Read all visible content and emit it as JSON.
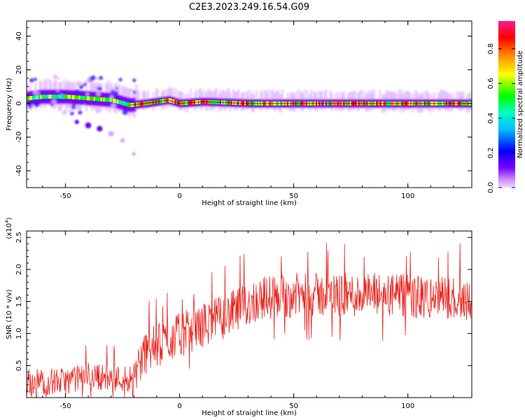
{
  "title": "C2E3.2023.249.16.54.G09",
  "colors": {
    "snr_line": "#e8221c",
    "axis": "#000000"
  },
  "chart_data": [
    {
      "type": "heatmap",
      "xlabel": "Height of straight line (km)",
      "ylabel": "Frequency (Hz)",
      "xlim": [
        -67,
        128
      ],
      "ylim": [
        -50,
        49
      ],
      "x_ticks": [
        -50,
        0,
        50,
        100
      ],
      "y_ticks": [
        -40,
        -20,
        0,
        20,
        40
      ],
      "x_tick_labels": [
        "-50",
        "0",
        "50",
        "100"
      ],
      "y_tick_labels": [
        "-40",
        "-20",
        "0",
        "20",
        "40"
      ],
      "colorbar": {
        "label": "Normalized spectral amplitude",
        "range": [
          0.0,
          0.96
        ],
        "ticks": [
          0.0,
          0.2,
          0.4,
          0.6,
          0.8
        ],
        "tick_labels": [
          "0.0",
          "0.2",
          "0.4",
          "0.6",
          "0.8"
        ],
        "colormap": [
          "#f5d6ff",
          "#7b00ff",
          "#0000ff",
          "#00e5ff",
          "#00ff00",
          "#ffff00",
          "#ff8000",
          "#ff0000",
          "#ff1a8c"
        ]
      },
      "description_series": [
        {
          "name": "main_trace",
          "x": [
            -67,
            -60,
            -50,
            -40,
            -30,
            -22,
            -15,
            -5,
            0,
            10,
            30,
            50,
            70,
            90,
            110,
            128
          ],
          "y": [
            3,
            4,
            4,
            3,
            2,
            -1,
            0,
            2,
            0,
            1,
            0,
            0,
            0,
            0,
            0,
            0
          ]
        },
        {
          "name": "secondary_branch",
          "x": [
            -45,
            -40,
            -35,
            -30,
            -25,
            -20
          ],
          "y": [
            -11,
            -13,
            -15,
            -18,
            -22,
            -30
          ]
        }
      ]
    },
    {
      "type": "line",
      "xlabel": "Height of straight line (km)",
      "ylabel": "SNR (10 * v/v)",
      "y_scale_label": "(x10",
      "y_scale_exp": "4",
      "y_scale_close": ")",
      "xlim": [
        -67,
        128
      ],
      "ylim": [
        0.0,
        2.6
      ],
      "x_ticks": [
        -50,
        0,
        50,
        100
      ],
      "y_ticks": [
        0.5,
        1.0,
        1.5,
        2.0,
        2.5
      ],
      "x_tick_labels": [
        "-50",
        "0",
        "50",
        "100"
      ],
      "y_tick_labels": [
        "0.5",
        "1.0",
        "1.5",
        "2.0",
        "2.5"
      ],
      "trend": {
        "x": [
          -67,
          -50,
          -40,
          -30,
          -22,
          -15,
          -5,
          5,
          15,
          25,
          35,
          50,
          70,
          90,
          110,
          128
        ],
        "y": [
          0.25,
          0.25,
          0.35,
          0.3,
          0.3,
          0.7,
          0.9,
          1.05,
          1.2,
          1.35,
          1.55,
          1.6,
          1.6,
          1.6,
          1.55,
          1.55
        ]
      },
      "noise_amplitude": 0.35
    }
  ]
}
